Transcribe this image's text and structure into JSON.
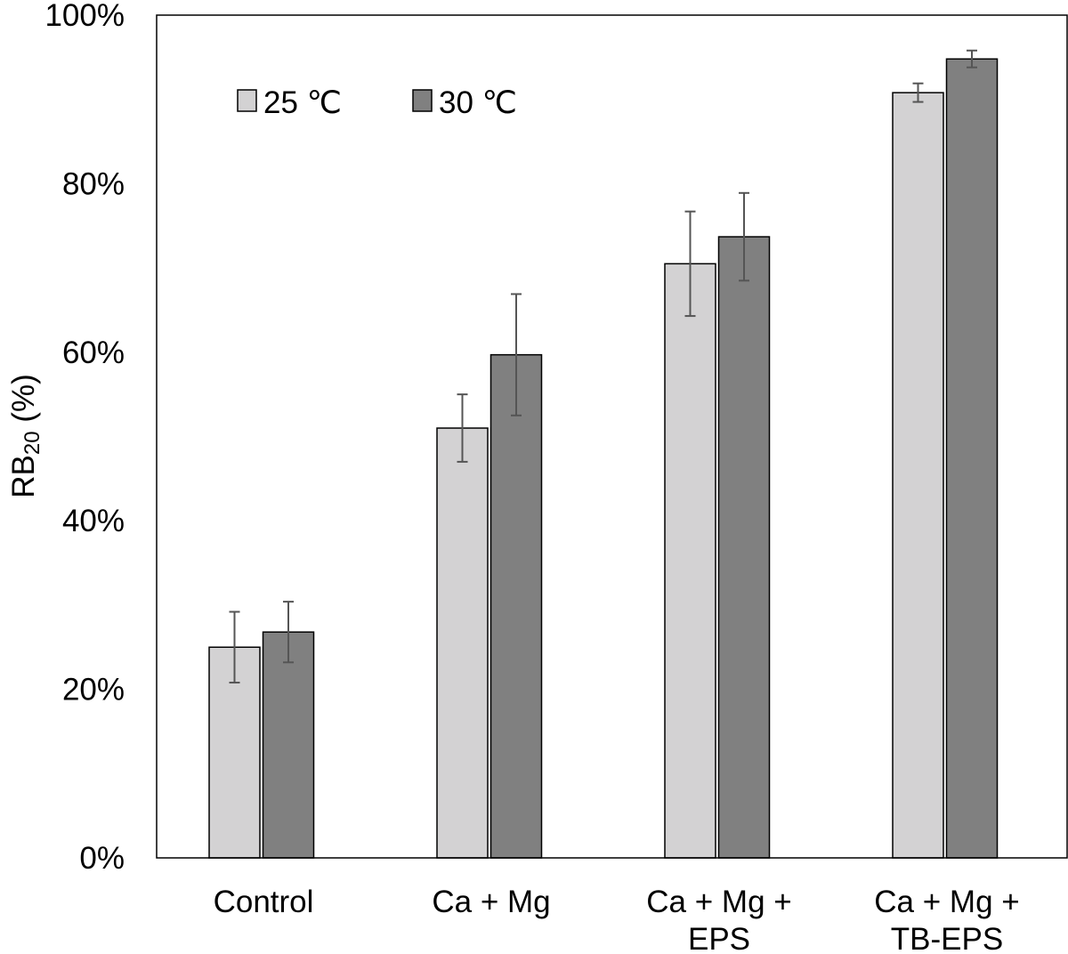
{
  "chart_data": {
    "type": "bar",
    "categories": [
      [
        "Control"
      ],
      [
        "Ca + Mg"
      ],
      [
        "Ca + Mg +",
        "EPS"
      ],
      [
        "Ca + Mg +",
        "TB-EPS"
      ]
    ],
    "series": [
      {
        "name": "25 ℃",
        "color": "#d3d2d3",
        "values": [
          25,
          51,
          70.5,
          90.8
        ],
        "errors": [
          4.2,
          4.0,
          6.2,
          1.1
        ]
      },
      {
        "name": "30 ℃",
        "color": "#808080",
        "values": [
          26.8,
          59.7,
          73.7,
          94.8
        ],
        "errors": [
          3.6,
          7.2,
          5.2,
          1.0
        ]
      }
    ],
    "ylabel": "RB",
    "ylabel_sub": "20",
    "ylabel_suffix": " (%)",
    "ylim": [
      0,
      100
    ],
    "yticks": [
      0,
      20,
      40,
      60,
      80,
      100
    ],
    "ytick_labels": [
      "0%",
      "20%",
      "40%",
      "60%",
      "80%",
      "100%"
    ],
    "grid": false,
    "legend_position": "top-left, inside plot"
  }
}
